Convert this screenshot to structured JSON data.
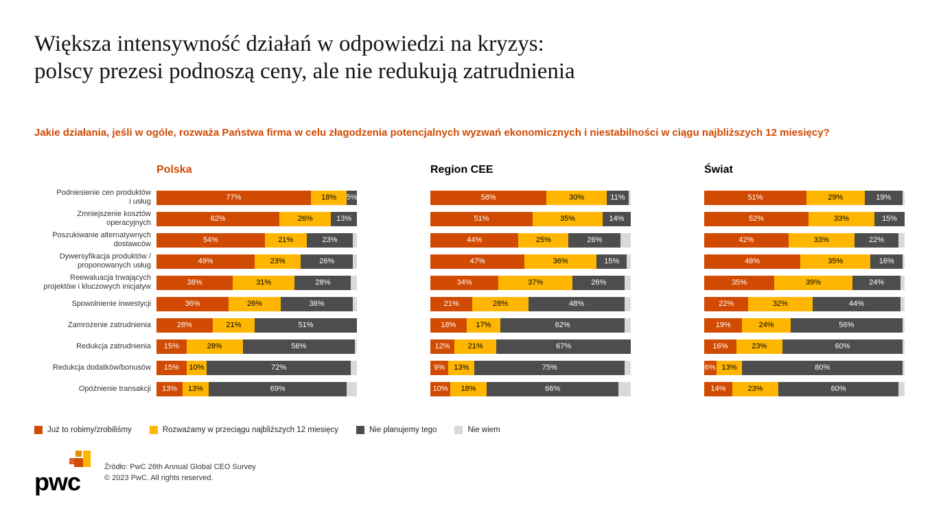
{
  "title_line1": "Większa intensywność działań w odpowiedzi na kryzys:",
  "title_line2": "polscy prezesi podnoszą ceny, ale nie redukują zatrudnienia",
  "question": "Jakie działania, jeśli w ogóle, rozważa Państwa firma w celu złagodzenia potencjalnych wyzwań ekonomicznych i niestabilności w ciągu najbliższych 12 miesięcy?",
  "chart_data": {
    "type": "bar",
    "orientation": "horizontal",
    "stacked": true,
    "unit": "%",
    "xlim": [
      0,
      100
    ],
    "grid": false,
    "legend_position": "bottom",
    "categories": [
      "Podniesienie cen produktów\ni usług",
      "Zmniejszenie kosztów\noperacyjnych",
      "Poszukiwanie alternatywnych\ndostawców",
      "Dywersyfikacja produktów /\nproponowanych usług",
      "Reewaluacja trwających\nprojektów i kluczowych inicjatyw",
      "Spowolnienie inwestycji",
      "Zamrożenie zatrudnienia",
      "Redukcja zatrudnienia",
      "Redukcja dodatków/bonusów",
      "Opóźnienie transakcji"
    ],
    "series_names": [
      "Już to robimy/zrobiliśmy",
      "Rozważamy w przeciągu najbliższych 12 miesięcy",
      "Nie planujemy tego",
      "Nie wiem"
    ],
    "colors": [
      "#d04a02",
      "#ffb600",
      "#4d4d4d",
      "#d9d9d9"
    ],
    "label_colors": [
      "#ffffff",
      "#000000",
      "#ffffff",
      "#000000"
    ],
    "groups": [
      {
        "id": "polska",
        "name": "Polska",
        "header_color": "#d04a02",
        "rows": [
          [
            77,
            18,
            5
          ],
          [
            62,
            26,
            13
          ],
          [
            54,
            21,
            23
          ],
          [
            49,
            23,
            26
          ],
          [
            38,
            31,
            28
          ],
          [
            36,
            26,
            36
          ],
          [
            28,
            21,
            51
          ],
          [
            15,
            28,
            56
          ],
          [
            15,
            10,
            72
          ],
          [
            13,
            13,
            69
          ]
        ]
      },
      {
        "id": "region-cee",
        "name": "Region CEE",
        "header_color": "#000000",
        "rows": [
          [
            58,
            30,
            11
          ],
          [
            51,
            35,
            14
          ],
          [
            44,
            25,
            26
          ],
          [
            47,
            36,
            15
          ],
          [
            34,
            37,
            26
          ],
          [
            21,
            28,
            48
          ],
          [
            18,
            17,
            62
          ],
          [
            12,
            21,
            67
          ],
          [
            9,
            13,
            75
          ],
          [
            10,
            18,
            66
          ]
        ]
      },
      {
        "id": "swiat",
        "name": "Świat",
        "header_color": "#000000",
        "rows": [
          [
            51,
            29,
            19
          ],
          [
            52,
            33,
            15
          ],
          [
            42,
            33,
            22
          ],
          [
            48,
            35,
            16
          ],
          [
            35,
            39,
            24
          ],
          [
            22,
            32,
            44
          ],
          [
            19,
            24,
            56
          ],
          [
            16,
            23,
            60
          ],
          [
            6,
            13,
            80
          ],
          [
            14,
            23,
            60
          ]
        ]
      }
    ],
    "legend": [
      "Już to robimy/zrobiliśmy",
      "Rozważamy w przeciągu najbliższych 12 miesięcy",
      "Nie planujemy tego",
      "Nie wiem"
    ]
  },
  "footer": {
    "logo": "pwc",
    "source": "Źródło: PwC 26th Annual Global CEO Survey",
    "copyright": "© 2023 PwC. All rights reserved."
  }
}
